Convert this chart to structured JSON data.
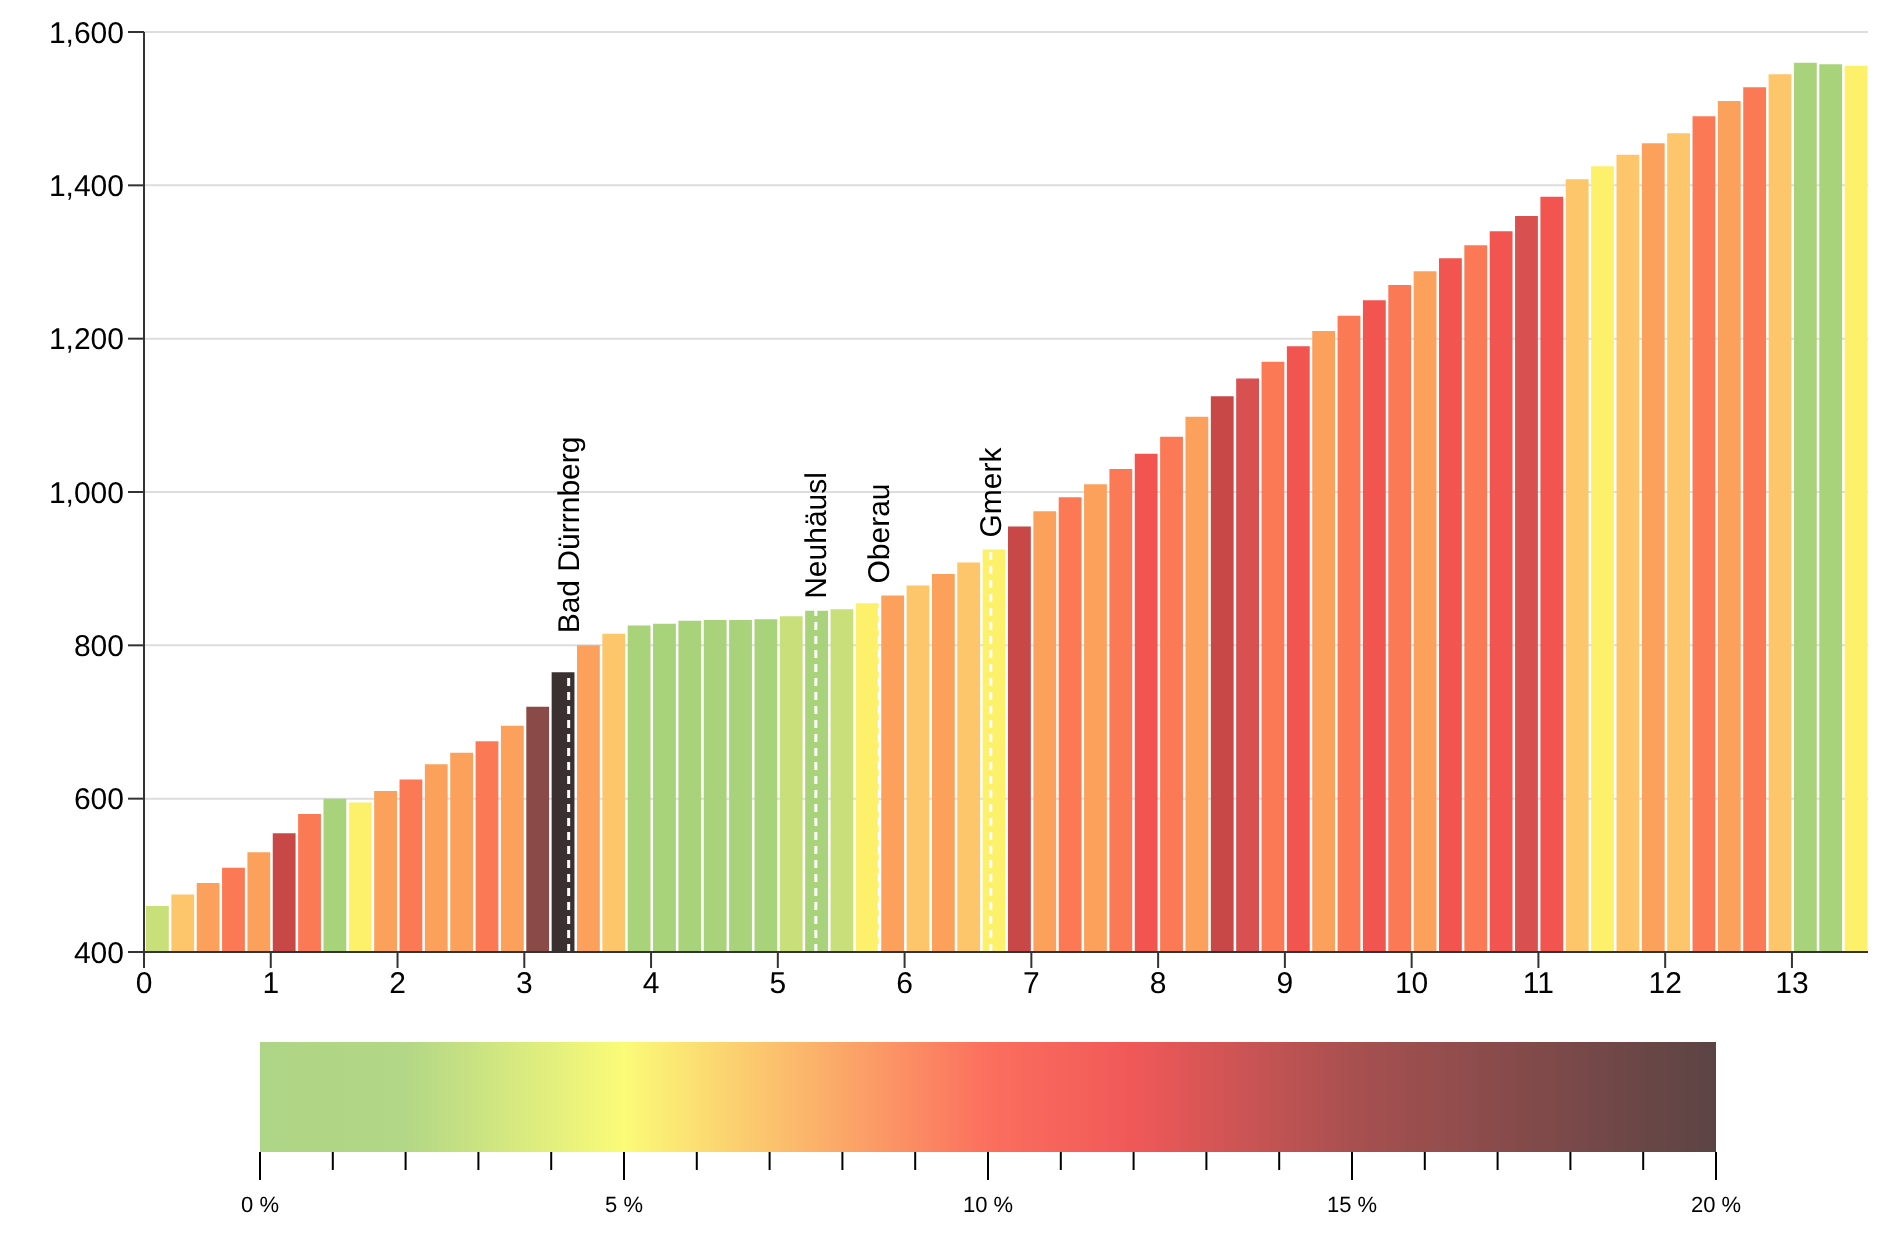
{
  "chart_data": {
    "type": "bar",
    "x": [
      0.1,
      0.3,
      0.5,
      0.7,
      0.9,
      1.1,
      1.3,
      1.5,
      1.7,
      1.9,
      2.1,
      2.3,
      2.5,
      2.7,
      2.9,
      3.1,
      3.3,
      3.5,
      3.7,
      3.9,
      4.1,
      4.3,
      4.5,
      4.7,
      4.9,
      5.1,
      5.3,
      5.5,
      5.7,
      5.9,
      6.1,
      6.3,
      6.5,
      6.7,
      6.9,
      7.1,
      7.3,
      7.5,
      7.7,
      7.9,
      8.1,
      8.3,
      8.5,
      8.7,
      8.9,
      9.1,
      9.3,
      9.5,
      9.7,
      9.9,
      10.1,
      10.3,
      10.5,
      10.7,
      10.9,
      11.1,
      11.3,
      11.5,
      11.7,
      11.9,
      12.1,
      12.3,
      12.5,
      12.7,
      12.9,
      13.1,
      13.3,
      13.5
    ],
    "values": [
      460,
      475,
      490,
      510,
      530,
      555,
      580,
      600,
      595,
      610,
      625,
      645,
      660,
      675,
      695,
      720,
      765,
      800,
      815,
      826,
      828,
      832,
      833,
      833,
      834,
      838,
      845,
      847,
      855,
      865,
      878,
      893,
      908,
      925,
      955,
      975,
      993,
      1010,
      1030,
      1050,
      1072,
      1098,
      1125,
      1148,
      1170,
      1190,
      1210,
      1230,
      1250,
      1270,
      1288,
      1305,
      1322,
      1340,
      1360,
      1385,
      1408,
      1425,
      1440,
      1455,
      1468,
      1490,
      1510,
      1528,
      1545,
      1560,
      1558,
      1556
    ],
    "colors": [
      "#c9e07a",
      "#fdc66a",
      "#fca15c",
      "#fb7a55",
      "#fca15c",
      "#c84848",
      "#fb7a55",
      "#a8d37a",
      "#fdf06a",
      "#fca15c",
      "#fb7a55",
      "#fca15c",
      "#fca15c",
      "#fb7a55",
      "#fca15c",
      "#8a4a48",
      "#3a3030",
      "#fca15c",
      "#fdc66a",
      "#a8d37a",
      "#a8d37a",
      "#a8d37a",
      "#a8d37a",
      "#a8d37a",
      "#a8d37a",
      "#c9e07a",
      "#a8d37a",
      "#c9e07a",
      "#fdf06a",
      "#fca15c",
      "#fdc66a",
      "#fca15c",
      "#fdc66a",
      "#fdf06a",
      "#c84848",
      "#fca15c",
      "#fb7a55",
      "#fca15c",
      "#fb7a55",
      "#f2554f",
      "#fb7a55",
      "#fca15c",
      "#c84848",
      "#d85050",
      "#fb7a55",
      "#f2554f",
      "#fca15c",
      "#fb7a55",
      "#f2554f",
      "#fb7a55",
      "#fca15c",
      "#f2554f",
      "#fb7a55",
      "#f2554f",
      "#d85050",
      "#f2554f",
      "#fdc66a",
      "#fdf06a",
      "#fdc66a",
      "#fca15c",
      "#fdc66a",
      "#fb7a55",
      "#fca15c",
      "#fb7a55",
      "#fdc66a",
      "#a8d37a",
      "#a8d37a",
      "#fdf06a"
    ],
    "xlim": [
      0,
      13.6
    ],
    "xticks": [
      0,
      1,
      2,
      3,
      4,
      5,
      6,
      7,
      8,
      9,
      10,
      11,
      12,
      13
    ],
    "ylim": [
      400,
      1600
    ],
    "yticks": [
      {
        "value": 400,
        "label": "400"
      },
      {
        "value": 600,
        "label": "600"
      },
      {
        "value": 800,
        "label": "800"
      },
      {
        "value": 1000,
        "label": "1,000"
      },
      {
        "value": 1200,
        "label": "1,200"
      },
      {
        "value": 1400,
        "label": "1,400"
      },
      {
        "value": 1600,
        "label": "1,600"
      }
    ],
    "grid": "y",
    "legend": false,
    "ref_lines": [
      {
        "axis": "x",
        "value": 3.35,
        "label": "Bad Dürrnberg",
        "color": "#ffffff",
        "line_style": "dashed"
      },
      {
        "axis": "x",
        "value": 5.3,
        "label": "Neuhäusl",
        "color": "#ffffff",
        "line_style": "dashed"
      },
      {
        "axis": "x",
        "value": 5.8,
        "label": "Oberau",
        "color": "#ffffff",
        "line_style": "dashed"
      },
      {
        "axis": "x",
        "value": 6.68,
        "label": "Gmerk",
        "color": "#ffffff",
        "line_style": "dashed"
      }
    ],
    "clim": [
      0,
      20
    ],
    "cticks": [
      {
        "value": 0,
        "label": "0 %"
      },
      {
        "value": 1,
        "label": null
      },
      {
        "value": 2,
        "label": null
      },
      {
        "value": 3,
        "label": null
      },
      {
        "value": 4,
        "label": null
      },
      {
        "value": 5,
        "label": "5 %"
      },
      {
        "value": 6,
        "label": null
      },
      {
        "value": 7,
        "label": null
      },
      {
        "value": 8,
        "label": null
      },
      {
        "value": 9,
        "label": null
      },
      {
        "value": 10,
        "label": "10 %"
      },
      {
        "value": 11,
        "label": null
      },
      {
        "value": 12,
        "label": null
      },
      {
        "value": 13,
        "label": null
      },
      {
        "value": 14,
        "label": null
      },
      {
        "value": 15,
        "label": "15 %"
      },
      {
        "value": 16,
        "label": null
      },
      {
        "value": 17,
        "label": null
      },
      {
        "value": 18,
        "label": null
      },
      {
        "value": 19,
        "label": null
      },
      {
        "value": 20,
        "label": "20 %"
      }
    ]
  }
}
